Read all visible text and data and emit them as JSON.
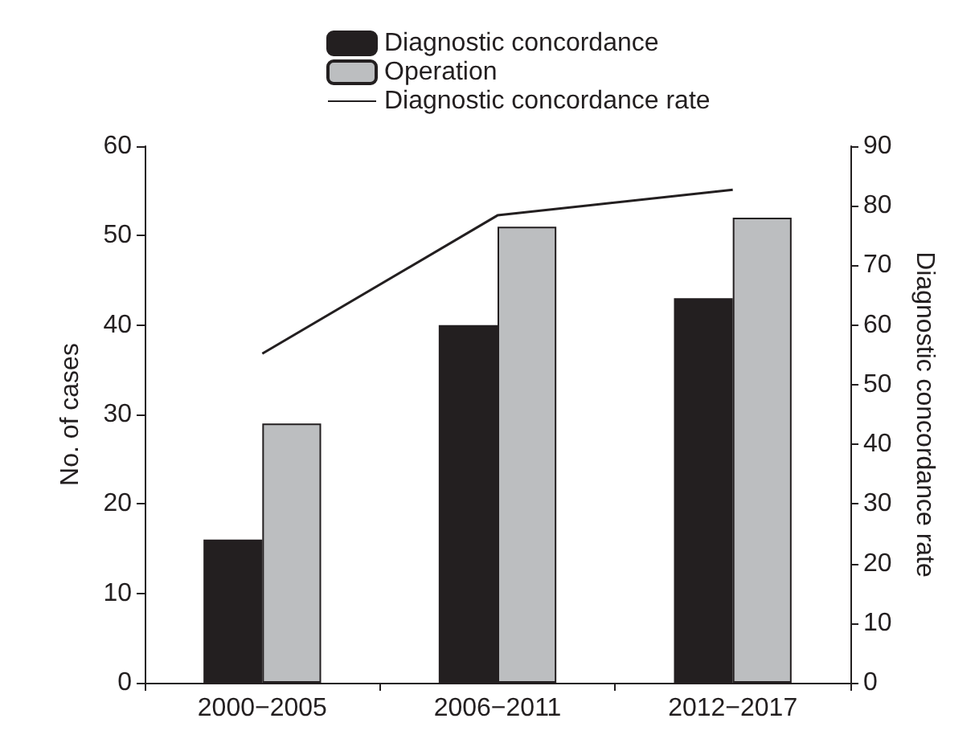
{
  "chart_data": {
    "type": "bar",
    "categories": [
      "2000−2005",
      "2006−2011",
      "2012−2017"
    ],
    "ylabel": "No. of cases",
    "y2label": "Diagnostic concordance rate",
    "series": [
      {
        "name": "Diagnostic concordance",
        "color": "#231f20",
        "values": [
          16,
          40,
          43
        ]
      },
      {
        "name": "Operation",
        "color": "#bcbec0",
        "values": [
          29,
          51,
          52
        ]
      },
      {
        "name": "Diagnostic concordance rate",
        "type": "line",
        "axis": "y2",
        "color": "#231f20",
        "values": [
          55.2,
          78.4,
          82.7
        ]
      }
    ],
    "ylim": [
      0,
      60
    ],
    "yticks": [
      0,
      10,
      20,
      30,
      40,
      50,
      60
    ],
    "y2lim": [
      0,
      90
    ],
    "y2ticks": [
      0,
      10,
      20,
      30,
      40,
      50,
      60,
      70,
      80,
      90
    ],
    "legend": "top",
    "grid": false,
    "marker": "none",
    "line_style": "solid"
  }
}
